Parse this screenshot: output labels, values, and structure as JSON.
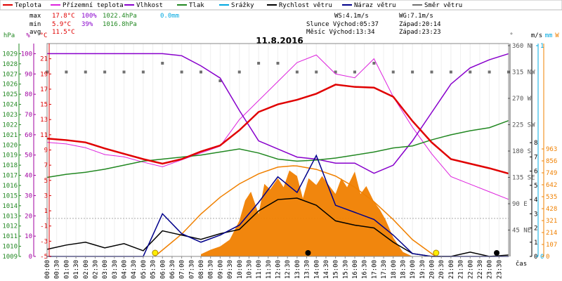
{
  "colors": {
    "teplota": "#e00000",
    "prizemni": "#dd22dd",
    "vlhkost": "#8800cc",
    "tlak": "#228822",
    "srazky": "#00a8e0",
    "rychlost": "#000000",
    "naraz": "#00008b",
    "smer": "#707070",
    "radiace": "#f08000",
    "axis_pressure": "#228822",
    "axis_humidity": "#a000a0",
    "axis_temp": "#dd0000"
  },
  "legend": [
    {
      "label": "Teplota",
      "color": "#e00000"
    },
    {
      "label": "Přízemní teplota",
      "color": "#dd22dd"
    },
    {
      "label": "Vlhkost",
      "color": "#8800cc"
    },
    {
      "label": "Tlak",
      "color": "#228822"
    },
    {
      "label": "Srážky",
      "color": "#00a8e0"
    },
    {
      "label": "Rychlost větru",
      "color": "#000000"
    },
    {
      "label": "Náraz větru",
      "color": "#00008b"
    },
    {
      "label": "Směr větru",
      "color": "#707070"
    }
  ],
  "stats": {
    "max_label": "max",
    "max_temp": "17.8°C",
    "max_hum": "100%",
    "max_press": "1022.4hPa",
    "max_rain": "0.0mm",
    "min_label": "min",
    "min_temp": "5.9°C",
    "min_hum": "39%",
    "min_press": "1016.8hPa",
    "avg_label": "avg",
    "avg_temp": "11.5°C",
    "ws": "WS:4.1m/s",
    "wg": "WG:7.1m/s",
    "slunce": "Slunce  Východ:05:37",
    "slunce_zapad": "Západ:20:14",
    "mesic": "Měsíc  Východ:13:34",
    "mesic_zapad": "Západ:23:23"
  },
  "chart_data": {
    "type": "line",
    "title": "11.8.2016",
    "xlabel": "čas",
    "x_ticks": [
      "00:00",
      "00:30",
      "01:00",
      "01:30",
      "02:00",
      "02:30",
      "03:00",
      "03:30",
      "04:00",
      "04:30",
      "05:00",
      "05:30",
      "06:00",
      "06:30",
      "07:00",
      "07:30",
      "08:00",
      "08:30",
      "09:00",
      "09:30",
      "10:00",
      "10:30",
      "11:00",
      "11:30",
      "12:00",
      "12:30",
      "13:00",
      "13:30",
      "14:00",
      "14:30",
      "15:00",
      "15:30",
      "16:00",
      "16:30",
      "17:00",
      "17:30",
      "18:00",
      "18:30",
      "19:00",
      "19:30",
      "20:00",
      "20:30",
      "21:00",
      "21:30",
      "22:00",
      "22:30",
      "23:00",
      "23:30"
    ],
    "axes": {
      "pressure": {
        "unit": "hPa",
        "ylim": [
          1009,
          1030
        ],
        "ticks": [
          "1009",
          "1010",
          "1011",
          "1012",
          "1013",
          "1014",
          "1015",
          "1016",
          "1017",
          "1018",
          "1019",
          "1020",
          "1021",
          "1022",
          "1023",
          "1024",
          "1025",
          "1026",
          "1027",
          "1028",
          "1029"
        ]
      },
      "humidity": {
        "unit": "%",
        "ylim": [
          0,
          105
        ],
        "ticks": [
          "0",
          "10",
          "20",
          "30",
          "40",
          "50",
          "60",
          "70",
          "80",
          "90",
          "100"
        ]
      },
      "temperature": {
        "unit": "°C",
        "ylim": [
          -5,
          23
        ],
        "ticks": [
          "-5",
          "-3",
          "-1",
          "1",
          "3",
          "5",
          "7",
          "9",
          "11",
          "13",
          "15",
          "17",
          "19",
          "21"
        ]
      },
      "direction": {
        "unit": "°",
        "ticks": [
          "45 NE",
          "90 E",
          "135 SE",
          "180 S",
          "225 SW",
          "270 W",
          "315 NW",
          "360 N"
        ]
      },
      "wind": {
        "unit": "m/s",
        "ticks": [
          "0",
          "1",
          "2",
          "3",
          "4",
          "5",
          "6",
          "7",
          "8"
        ]
      },
      "rain": {
        "unit": "mm",
        "ticks": [
          "0",
          "1"
        ]
      },
      "radiation": {
        "unit": "W",
        "ticks": [
          "0",
          "107",
          "214",
          "321",
          "428",
          "535",
          "642",
          "749",
          "856",
          "963"
        ]
      }
    },
    "series": [
      {
        "name": "Teplota",
        "axis": "temperature",
        "x": [
          0,
          1,
          2,
          3,
          4,
          5,
          6,
          7,
          8,
          9,
          10,
          11,
          12,
          13,
          14,
          15,
          16,
          17,
          18,
          19,
          20,
          21,
          22,
          23,
          24
        ],
        "y": [
          10.5,
          10.3,
          10.0,
          9.2,
          8.5,
          7.8,
          7.2,
          7.8,
          8.8,
          9.6,
          11.6,
          14.0,
          15.0,
          15.6,
          16.4,
          17.6,
          17.3,
          17.2,
          16.0,
          12.8,
          10.0,
          7.8,
          7.2,
          6.6,
          5.9
        ]
      },
      {
        "name": "Přízemní teplota",
        "axis": "temperature",
        "x": [
          0,
          1,
          2,
          3,
          4,
          5,
          6,
          7,
          8,
          9,
          10,
          11,
          12,
          13,
          14,
          15,
          16,
          17,
          18,
          19,
          20,
          21,
          22,
          23,
          24
        ],
        "y": [
          10.0,
          9.8,
          9.3,
          8.4,
          8.1,
          7.4,
          6.8,
          7.7,
          8.6,
          9.5,
          13.0,
          15.5,
          18.0,
          20.5,
          21.5,
          19.0,
          18.5,
          21.0,
          16.0,
          12.0,
          8.5,
          5.5,
          4.5,
          3.5,
          2.5
        ]
      },
      {
        "name": "Vlhkost",
        "axis": "humidity",
        "x": [
          0,
          1,
          2,
          3,
          4,
          5,
          6,
          7,
          8,
          9,
          10,
          11,
          12,
          13,
          14,
          15,
          16,
          17,
          18,
          19,
          20,
          21,
          22,
          23,
          24
        ],
        "y": [
          100,
          100,
          100,
          100,
          100,
          100,
          100,
          99,
          94,
          88,
          72,
          57,
          53,
          49,
          48,
          46,
          46,
          41,
          45,
          57,
          71,
          85,
          93,
          97,
          100
        ]
      },
      {
        "name": "Tlak",
        "axis": "pressure",
        "x": [
          0,
          1,
          2,
          3,
          4,
          5,
          6,
          7,
          8,
          9,
          10,
          11,
          12,
          13,
          14,
          15,
          16,
          17,
          18,
          19,
          20,
          21,
          22,
          23,
          24
        ],
        "y": [
          1016.8,
          1017.1,
          1017.3,
          1017.6,
          1018.0,
          1018.4,
          1018.6,
          1018.8,
          1019.0,
          1019.3,
          1019.6,
          1019.2,
          1018.6,
          1018.4,
          1018.5,
          1018.7,
          1019.0,
          1019.3,
          1019.7,
          1019.9,
          1020.5,
          1021.0,
          1021.4,
          1021.7,
          1022.4
        ]
      },
      {
        "name": "Rychlost větru",
        "axis": "wind",
        "x": [
          0,
          1,
          2,
          3,
          4,
          5,
          6,
          7,
          8,
          9,
          10,
          11,
          12,
          13,
          14,
          15,
          16,
          17,
          18,
          19,
          20,
          21,
          22,
          23,
          24
        ],
        "y": [
          0.5,
          0.8,
          1.0,
          0.6,
          0.9,
          0.4,
          1.8,
          1.5,
          1.2,
          1.6,
          1.9,
          3.2,
          4.0,
          4.1,
          3.6,
          2.5,
          2.2,
          2.0,
          1.0,
          0.2,
          0,
          0,
          0.3,
          0,
          0.1
        ]
      },
      {
        "name": "Náraz větru",
        "axis": "wind",
        "x": [
          0,
          1,
          2,
          3,
          4,
          5,
          6,
          7,
          8,
          9,
          10,
          11,
          12,
          13,
          14,
          15,
          16,
          17,
          18,
          19,
          20,
          21,
          22,
          23,
          24
        ],
        "y": [
          0,
          0,
          0,
          0,
          0,
          0,
          3.0,
          1.6,
          1.0,
          1.5,
          2.2,
          3.8,
          5.6,
          4.5,
          7.1,
          3.6,
          3.1,
          2.6,
          1.5,
          0.2,
          0,
          0,
          0,
          0,
          0
        ]
      },
      {
        "name": "Směr větru",
        "axis": "direction",
        "x": [
          0,
          1,
          2,
          3,
          4,
          5,
          6,
          7,
          8,
          9,
          10,
          11,
          12,
          13,
          14,
          15,
          16,
          17,
          18,
          19,
          20,
          21,
          22,
          23,
          24
        ],
        "y": [
          315,
          315,
          315,
          315,
          315,
          315,
          330,
          315,
          315,
          300,
          315,
          330,
          330,
          315,
          315,
          315,
          315,
          330,
          315,
          315,
          315,
          315,
          315,
          315,
          315
        ]
      },
      {
        "name": "Srážky",
        "axis": "rain",
        "x": [
          0,
          24
        ],
        "y": [
          0,
          0
        ]
      }
    ],
    "solar_curve": {
      "axis": "radiation",
      "x": [
        5.6,
        7,
        8,
        9,
        10,
        11,
        12,
        12.8,
        13,
        14,
        15,
        16,
        17,
        18,
        19,
        20.2
      ],
      "y": [
        0,
        200,
        380,
        530,
        650,
        740,
        800,
        812,
        810,
        780,
        720,
        620,
        490,
        330,
        150,
        0
      ]
    },
    "radiation_area": {
      "axis": "radiation",
      "x": [
        8,
        8.5,
        9,
        9.5,
        10,
        10.3,
        10.6,
        11,
        11.3,
        11.6,
        12,
        12.3,
        12.6,
        13,
        13.3,
        13.6,
        14,
        14.3,
        14.6,
        15,
        15.3,
        15.6,
        16,
        16.3,
        16.6,
        17,
        17.3,
        17.6,
        18,
        18.5,
        19
      ],
      "y": [
        20,
        60,
        90,
        150,
        320,
        500,
        580,
        380,
        650,
        600,
        700,
        620,
        770,
        720,
        520,
        700,
        640,
        720,
        650,
        560,
        700,
        620,
        760,
        560,
        630,
        490,
        420,
        330,
        170,
        40,
        0
      ]
    }
  }
}
